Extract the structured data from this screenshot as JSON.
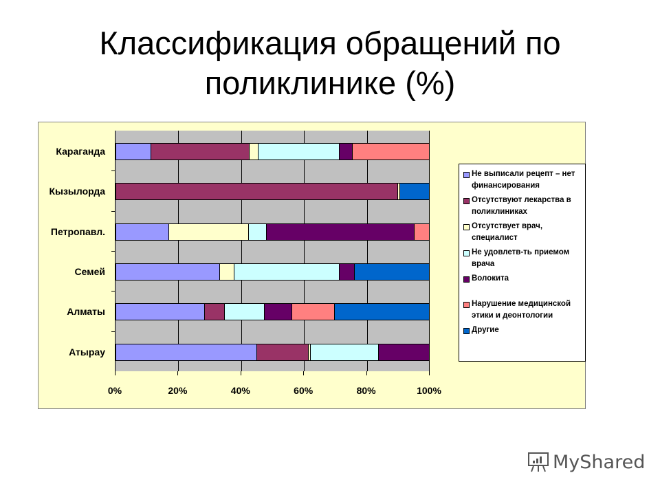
{
  "slide": {
    "title_line1": "Классификация обращений по",
    "title_line2": "поликлинике (%)",
    "watermark": "MyShared"
  },
  "chart_data": {
    "type": "bar",
    "orientation": "horizontal",
    "stacked": "percent",
    "title": "Классификация обращений по поликлинике (%)",
    "xlabel": "",
    "ylabel": "",
    "xlim": [
      0,
      100
    ],
    "x_ticks": [
      "0%",
      "20%",
      "40%",
      "60%",
      "80%",
      "100%"
    ],
    "grid": true,
    "legend_position": "right",
    "categories": [
      "Караганда",
      "Кызылорда",
      "Петропавл.",
      "Семей",
      "Алматы",
      "Атырау"
    ],
    "series": [
      {
        "name": "Не выписали рецепт – нет финансирования",
        "color": "#9999ff",
        "values": [
          11.4,
          0,
          17.0,
          33.3,
          28.4,
          45.1
        ]
      },
      {
        "name": "Отсутствуют лекарства в поликлиниках",
        "color": "#993366",
        "values": [
          31.3,
          90.0,
          0,
          0,
          6.3,
          16.4
        ]
      },
      {
        "name": "Отсутствует врач, специалист",
        "color": "#ffffcc",
        "values": [
          2.8,
          0.7,
          25.4,
          4.6,
          0,
          0.7
        ]
      },
      {
        "name": "Не удовлетв-ть приемом врача",
        "color": "#ccffff",
        "values": [
          25.8,
          0,
          5.7,
          33.5,
          12.7,
          21.7
        ]
      },
      {
        "name": "Волокита",
        "color": "#660066",
        "values": [
          4.2,
          0,
          47.0,
          4.8,
          8.8,
          16.2
        ]
      },
      {
        "name": "Нарушение медицинской этики и деонтологии",
        "color": "#ff8080",
        "values": [
          24.5,
          0,
          4.8,
          0,
          13.6,
          0
        ]
      },
      {
        "name": "Другие",
        "color": "#0066cc",
        "values": [
          0,
          9.3,
          0,
          23.8,
          30.2,
          0
        ]
      }
    ]
  },
  "legend": [
    {
      "label": "Не выписали рецепт – нет финансирования",
      "color": "#9999ff"
    },
    {
      "label": "Отсутствуют  лекарства в поликлиниках",
      "color": "#993366"
    },
    {
      "label": "Отсутствует врач, специалист",
      "color": "#ffffcc"
    },
    {
      "label": "Не удовлетв-ть приемом врача",
      "color": "#ccffff"
    },
    {
      "label": "Волокита",
      "color": "#660066"
    },
    {
      "label": "Нарушение медицинской этики и деонтологии",
      "color": "#ff8080"
    },
    {
      "label": "Другие",
      "color": "#0066cc"
    }
  ]
}
